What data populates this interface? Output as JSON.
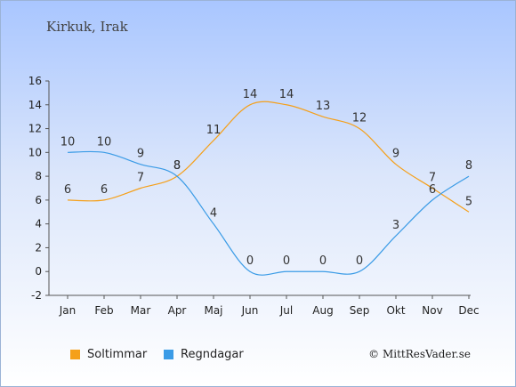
{
  "title": "Kirkuk, Irak",
  "credit": "© MittResVader.se",
  "colors": {
    "soltimmar": "#f5a01a",
    "regndagar": "#3a9be6"
  },
  "chart_data": {
    "type": "line",
    "categories": [
      "Jan",
      "Feb",
      "Mar",
      "Apr",
      "Maj",
      "Jun",
      "Jul",
      "Aug",
      "Sep",
      "Okt",
      "Nov",
      "Dec"
    ],
    "ylim": [
      -2,
      16
    ],
    "yticks": [
      -2,
      0,
      2,
      4,
      6,
      8,
      10,
      12,
      14,
      16
    ],
    "series": [
      {
        "name": "Soltimmar",
        "color": "#f5a01a",
        "values": [
          6,
          6,
          7,
          8,
          11,
          14,
          14,
          13,
          12,
          9,
          7,
          5
        ]
      },
      {
        "name": "Regndagar",
        "color": "#3a9be6",
        "values": [
          10,
          10,
          9,
          8,
          4,
          0,
          0,
          0,
          0,
          3,
          6,
          8
        ]
      }
    ],
    "legend_position": "bottom-left",
    "grid": false
  }
}
